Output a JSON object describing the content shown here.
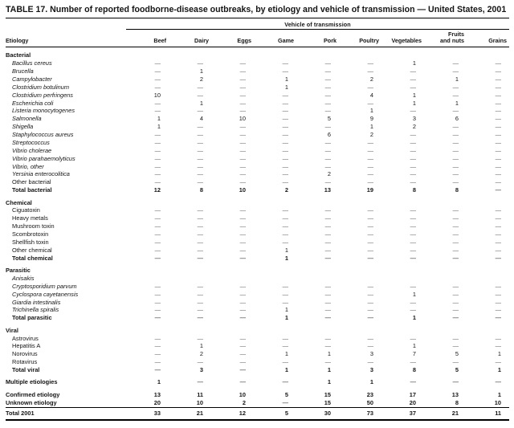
{
  "title": "TABLE 17. Number of reported foodborne-disease outbreaks, by etiology and vehicle of transmission — United States, 2001",
  "table": {
    "spanner": "Vehicle of transmission",
    "etiology_header": "Etiology",
    "columns": [
      "Beef",
      "Dairy",
      "Eggs",
      "Game",
      "Pork",
      "Poultry",
      "Vegetables",
      "Fruits\nand nuts",
      "Grains"
    ],
    "sections": [
      {
        "name": "Bacterial",
        "rows": [
          {
            "label": "Bacillus cereus",
            "italic": true,
            "values": [
              "—",
              "—",
              "—",
              "—",
              "—",
              "—",
              "1",
              "—",
              "—"
            ]
          },
          {
            "label": "Brucella",
            "italic": true,
            "values": [
              "—",
              "1",
              "—",
              "—",
              "—",
              "—",
              "—",
              "—",
              "—"
            ]
          },
          {
            "label": "Campylobacter",
            "italic": true,
            "values": [
              "—",
              "2",
              "—",
              "1",
              "—",
              "2",
              "—",
              "1",
              "—"
            ]
          },
          {
            "label": "Clostridium botulinum",
            "italic": true,
            "values": [
              "—",
              "—",
              "—",
              "1",
              "—",
              "—",
              "—",
              "—",
              "—"
            ]
          },
          {
            "label": "Clostridium perfringens",
            "italic": true,
            "values": [
              "10",
              "—",
              "—",
              "—",
              "—",
              "4",
              "1",
              "—",
              "—"
            ]
          },
          {
            "label": "Escherichia coli",
            "italic": true,
            "values": [
              "—",
              "1",
              "—",
              "—",
              "—",
              "—",
              "1",
              "1",
              "—"
            ]
          },
          {
            "label": "Listeria monocytogenes",
            "italic": true,
            "values": [
              "—",
              "—",
              "—",
              "—",
              "—",
              "1",
              "—",
              "—",
              "—"
            ]
          },
          {
            "label": "Salmonella",
            "italic": true,
            "values": [
              "1",
              "4",
              "10",
              "—",
              "5",
              "9",
              "3",
              "6",
              "—"
            ]
          },
          {
            "label": "Shigella",
            "italic": true,
            "values": [
              "1",
              "—",
              "—",
              "—",
              "—",
              "1",
              "2",
              "—",
              "—"
            ]
          },
          {
            "label": "Staphylococcus aureus",
            "italic": true,
            "values": [
              "—",
              "—",
              "—",
              "—",
              "6",
              "2",
              "—",
              "—",
              "—"
            ]
          },
          {
            "label": "Streptococcus",
            "italic": true,
            "values": [
              "—",
              "—",
              "—",
              "—",
              "—",
              "—",
              "—",
              "—",
              "—"
            ]
          },
          {
            "label": "Vibrio cholerae",
            "italic": true,
            "values": [
              "—",
              "—",
              "—",
              "—",
              "—",
              "—",
              "—",
              "—",
              "—"
            ]
          },
          {
            "label": "Vibrio parahaemolyticus",
            "italic": true,
            "values": [
              "—",
              "—",
              "—",
              "—",
              "—",
              "—",
              "—",
              "—",
              "—"
            ]
          },
          {
            "label": "Vibrio, other",
            "italic": true,
            "values": [
              "—",
              "—",
              "—",
              "—",
              "—",
              "—",
              "—",
              "—",
              "—"
            ]
          },
          {
            "label": "Yersinia enterocolitica",
            "italic": true,
            "values": [
              "—",
              "—",
              "—",
              "—",
              "2",
              "—",
              "—",
              "—",
              "—"
            ]
          },
          {
            "label": "Other bacterial",
            "italic": false,
            "values": [
              "—",
              "—",
              "—",
              "—",
              "—",
              "—",
              "—",
              "—",
              "—"
            ]
          }
        ],
        "total": {
          "label": "Total bacterial",
          "values": [
            "12",
            "8",
            "10",
            "2",
            "13",
            "19",
            "8",
            "8",
            "—"
          ]
        }
      },
      {
        "name": "Chemical",
        "rows": [
          {
            "label": "Ciguatoxin",
            "italic": false,
            "values": [
              "—",
              "—",
              "—",
              "—",
              "—",
              "—",
              "—",
              "—",
              "—"
            ]
          },
          {
            "label": "Heavy metals",
            "italic": false,
            "values": [
              "—",
              "—",
              "—",
              "—",
              "—",
              "—",
              "—",
              "—",
              "—"
            ]
          },
          {
            "label": "Mushroom toxin",
            "italic": false,
            "values": [
              "—",
              "—",
              "—",
              "—",
              "—",
              "—",
              "—",
              "—",
              "—"
            ]
          },
          {
            "label": "Scombrotoxin",
            "italic": false,
            "values": [
              "—",
              "—",
              "—",
              "—",
              "—",
              "—",
              "—",
              "—",
              "—"
            ]
          },
          {
            "label": "Shellfish toxin",
            "italic": false,
            "values": [
              "—",
              "—",
              "—",
              "—",
              "—",
              "—",
              "—",
              "—",
              "—"
            ]
          },
          {
            "label": "Other chemical",
            "italic": false,
            "values": [
              "—",
              "—",
              "—",
              "1",
              "—",
              "—",
              "—",
              "—",
              "—"
            ]
          }
        ],
        "total": {
          "label": "Total chemical",
          "values": [
            "—",
            "—",
            "—",
            "1",
            "—",
            "—",
            "—",
            "—",
            "—"
          ]
        }
      },
      {
        "name": "Parasitic",
        "rows": [
          {
            "label": "Anisakis",
            "italic": true,
            "values": [
              "",
              "",
              "",
              "",
              "",
              "",
              "",
              "",
              ""
            ]
          },
          {
            "label": "Cryptosporidium parvum",
            "italic": true,
            "values": [
              "—",
              "—",
              "—",
              "—",
              "—",
              "—",
              "—",
              "—",
              "—"
            ]
          },
          {
            "label": "Cyclospora cayetanensis",
            "italic": true,
            "values": [
              "—",
              "—",
              "—",
              "—",
              "—",
              "—",
              "1",
              "—",
              "—"
            ]
          },
          {
            "label": "Giardia intestinalis",
            "italic": true,
            "values": [
              "—",
              "—",
              "—",
              "—",
              "—",
              "—",
              "—",
              "—",
              "—"
            ]
          },
          {
            "label": "Trichinella spiralis",
            "italic": true,
            "values": [
              "—",
              "—",
              "—",
              "1",
              "—",
              "—",
              "—",
              "—",
              "—"
            ]
          }
        ],
        "total": {
          "label": "Total parasitic",
          "values": [
            "—",
            "—",
            "—",
            "1",
            "—",
            "—",
            "1",
            "—",
            "—"
          ]
        }
      },
      {
        "name": "Viral",
        "rows": [
          {
            "label": "Astrovirus",
            "italic": false,
            "values": [
              "—",
              "—",
              "—",
              "—",
              "—",
              "—",
              "—",
              "—",
              "—"
            ]
          },
          {
            "label": "Hepatitis A",
            "italic": false,
            "values": [
              "—",
              "1",
              "—",
              "—",
              "—",
              "—",
              "1",
              "—",
              "—"
            ]
          },
          {
            "label": "Norovirus",
            "italic": false,
            "values": [
              "—",
              "2",
              "—",
              "1",
              "1",
              "3",
              "7",
              "5",
              "1"
            ]
          },
          {
            "label": "Rotavirus",
            "italic": false,
            "values": [
              "—",
              "—",
              "—",
              "—",
              "—",
              "—",
              "—",
              "—",
              "—"
            ]
          }
        ],
        "total": {
          "label": "Total viral",
          "values": [
            "—",
            "3",
            "—",
            "1",
            "1",
            "3",
            "8",
            "5",
            "1"
          ]
        }
      }
    ],
    "summary_rows": [
      {
        "label": "Multiple etiologies",
        "gap": true,
        "values": [
          "1",
          "—",
          "—",
          "—",
          "1",
          "1",
          "—",
          "—",
          "—"
        ]
      },
      {
        "label": "Confirmed etiology",
        "gap": true,
        "values": [
          "13",
          "11",
          "10",
          "5",
          "15",
          "23",
          "17",
          "13",
          "1"
        ]
      },
      {
        "label": "Unknown etiology",
        "gap": false,
        "values": [
          "20",
          "10",
          "2",
          "—",
          "15",
          "50",
          "20",
          "8",
          "10"
        ]
      }
    ],
    "grand_total": {
      "label": "Total 2001",
      "values": [
        "33",
        "21",
        "12",
        "5",
        "30",
        "73",
        "37",
        "21",
        "11"
      ]
    }
  }
}
